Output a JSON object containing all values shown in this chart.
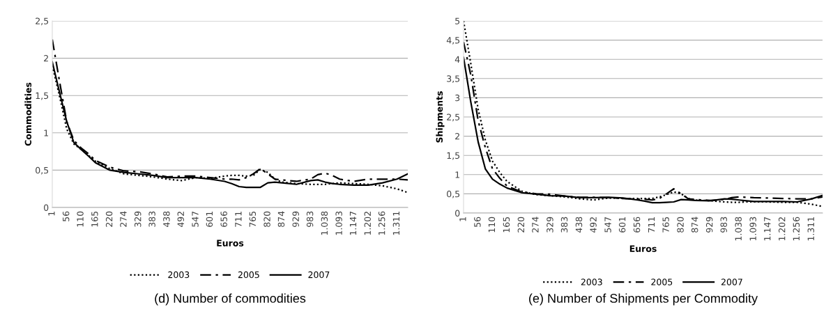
{
  "chart_data": [
    {
      "type": "line",
      "title": "(d) Number of commodities",
      "xlabel": "Euros",
      "ylabel": "Commodities",
      "grid": "y",
      "legend": "bottom",
      "x": [
        1,
        28,
        56,
        83,
        110,
        138,
        165,
        220,
        274,
        329,
        383,
        438,
        492,
        547,
        601,
        656,
        683,
        711,
        738,
        765,
        792,
        820,
        847,
        874,
        929,
        983,
        1010,
        1038,
        1065,
        1093,
        1147,
        1202,
        1256,
        1311,
        1352
      ],
      "xlim": [
        1,
        1352
      ],
      "xticks": [
        1,
        56,
        110,
        165,
        220,
        274,
        329,
        383,
        438,
        492,
        547,
        601,
        656,
        711,
        765,
        820,
        874,
        929,
        983,
        {
          "value": 1038,
          "label": "1.038"
        },
        {
          "value": 1093,
          "label": "1.093"
        },
        {
          "value": 1147,
          "label": "1.147"
        },
        {
          "value": 1202,
          "label": "1.202"
        },
        {
          "value": 1256,
          "label": "1.256"
        },
        {
          "value": 1311,
          "label": "1.311"
        }
      ],
      "ylim": [
        0,
        2.5
      ],
      "yticks": [
        0,
        {
          "value": 0.5,
          "label": "0,5"
        },
        1,
        {
          "value": 1.5,
          "label": "1,5"
        },
        2,
        {
          "value": 2.5,
          "label": "2,5"
        }
      ],
      "series": [
        {
          "name": "2003",
          "color": "#000000",
          "line_style": "dotted",
          "values": [
            1.9,
            1.5,
            1.05,
            0.85,
            0.78,
            0.7,
            0.62,
            0.52,
            0.45,
            0.43,
            0.41,
            0.38,
            0.36,
            0.4,
            0.39,
            0.42,
            0.43,
            0.43,
            0.42,
            0.43,
            0.51,
            0.47,
            0.38,
            0.34,
            0.32,
            0.31,
            0.31,
            0.31,
            0.32,
            0.33,
            0.32,
            0.31,
            0.29,
            0.25,
            0.2
          ]
        },
        {
          "name": "2005",
          "color": "#000000",
          "line_style": "dashdot",
          "values": [
            2.25,
            1.7,
            1.15,
            0.9,
            0.8,
            0.72,
            0.63,
            0.54,
            0.49,
            0.48,
            0.45,
            0.41,
            0.42,
            0.42,
            0.4,
            0.38,
            0.38,
            0.37,
            0.4,
            0.45,
            0.52,
            0.45,
            0.38,
            0.37,
            0.35,
            0.38,
            0.44,
            0.46,
            0.43,
            0.38,
            0.35,
            0.38,
            0.38,
            0.38,
            0.37
          ]
        },
        {
          "name": "2007",
          "color": "#000000",
          "line_style": "solid",
          "values": [
            1.95,
            1.55,
            1.15,
            0.87,
            0.78,
            0.69,
            0.6,
            0.5,
            0.47,
            0.45,
            0.43,
            0.4,
            0.4,
            0.4,
            0.38,
            0.35,
            0.32,
            0.28,
            0.27,
            0.27,
            0.27,
            0.33,
            0.34,
            0.33,
            0.31,
            0.36,
            0.37,
            0.34,
            0.32,
            0.31,
            0.3,
            0.3,
            0.33,
            0.38,
            0.45
          ]
        }
      ]
    },
    {
      "type": "line",
      "title": "(e) Number of Shipments per Commodity",
      "xlabel": "Euros",
      "ylabel": "Shipments",
      "grid": "y",
      "legend": "bottom",
      "x": [
        1,
        28,
        56,
        83,
        110,
        138,
        165,
        220,
        274,
        329,
        383,
        438,
        492,
        547,
        601,
        656,
        683,
        711,
        738,
        765,
        792,
        820,
        847,
        874,
        929,
        983,
        1010,
        1038,
        1065,
        1093,
        1147,
        1202,
        1256,
        1311,
        1352
      ],
      "xlim": [
        1,
        1352
      ],
      "xticks": [
        1,
        56,
        110,
        165,
        220,
        274,
        329,
        383,
        438,
        492,
        547,
        601,
        656,
        711,
        765,
        820,
        874,
        929,
        983,
        {
          "value": 1038,
          "label": "1.038"
        },
        {
          "value": 1093,
          "label": "1.093"
        },
        {
          "value": 1147,
          "label": "1.147"
        },
        {
          "value": 1202,
          "label": "1.202"
        },
        {
          "value": 1256,
          "label": "1.256"
        },
        {
          "value": 1311,
          "label": "1.311"
        }
      ],
      "ylim": [
        0,
        5
      ],
      "yticks": [
        0,
        {
          "value": 0.5,
          "label": "0,5"
        },
        1,
        {
          "value": 1.5,
          "label": "1,5"
        },
        2,
        {
          "value": 2.5,
          "label": "2,5"
        },
        3,
        {
          "value": 3.5,
          "label": "3,5"
        },
        4,
        {
          "value": 4.5,
          "label": "4,5"
        },
        5
      ],
      "series": [
        {
          "name": "2003",
          "color": "#000000",
          "line_style": "dotted",
          "values": [
            5.0,
            3.9,
            2.7,
            1.9,
            1.35,
            1.05,
            0.82,
            0.57,
            0.48,
            0.45,
            0.42,
            0.37,
            0.34,
            0.39,
            0.38,
            0.38,
            0.38,
            0.38,
            0.42,
            0.48,
            0.55,
            0.5,
            0.38,
            0.34,
            0.32,
            0.29,
            0.28,
            0.28,
            0.29,
            0.29,
            0.29,
            0.28,
            0.28,
            0.23,
            0.17
          ]
        },
        {
          "name": "2005",
          "color": "#000000",
          "line_style": "dashdot",
          "values": [
            4.45,
            3.6,
            2.4,
            1.7,
            1.15,
            0.9,
            0.7,
            0.55,
            0.5,
            0.49,
            0.44,
            0.41,
            0.41,
            0.4,
            0.38,
            0.36,
            0.36,
            0.34,
            0.38,
            0.5,
            0.63,
            0.5,
            0.37,
            0.35,
            0.33,
            0.35,
            0.4,
            0.42,
            0.41,
            0.4,
            0.39,
            0.38,
            0.37,
            0.37,
            0.42
          ]
        },
        {
          "name": "2007",
          "color": "#000000",
          "line_style": "solid",
          "values": [
            4.05,
            2.9,
            1.85,
            1.15,
            0.88,
            0.75,
            0.65,
            0.53,
            0.49,
            0.45,
            0.44,
            0.4,
            0.4,
            0.41,
            0.39,
            0.34,
            0.31,
            0.27,
            0.27,
            0.28,
            0.29,
            0.35,
            0.34,
            0.33,
            0.32,
            0.37,
            0.36,
            0.34,
            0.32,
            0.3,
            0.3,
            0.3,
            0.29,
            0.37,
            0.46
          ]
        }
      ]
    }
  ]
}
